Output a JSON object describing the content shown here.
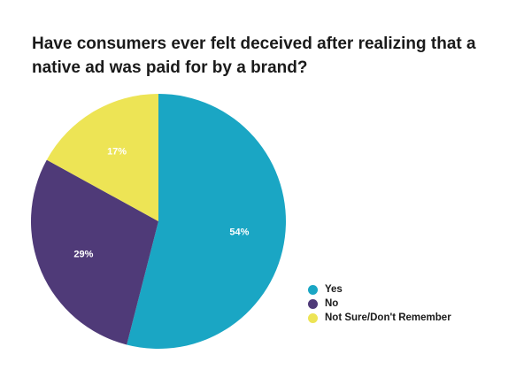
{
  "chart_data": {
    "type": "pie",
    "title": "Have consumers ever felt deceived after realizing that a native ad was paid for by a brand?",
    "categories": [
      "Yes",
      "No",
      "Not Sure/Don't Remember"
    ],
    "values": [
      54,
      29,
      17
    ],
    "labels": [
      "54%",
      "29%",
      "17%"
    ],
    "colors": [
      "#1aa6c4",
      "#4f3a78",
      "#ede455"
    ],
    "legend_position": "bottom-right"
  }
}
